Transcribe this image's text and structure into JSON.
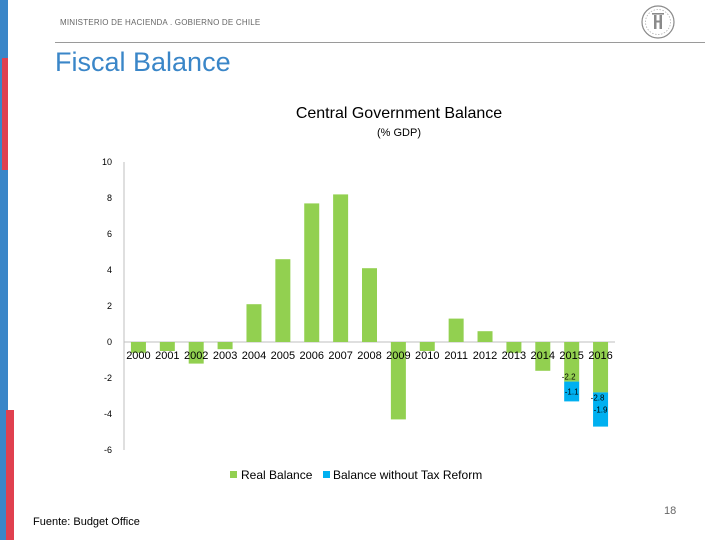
{
  "header": {
    "ministry": "MINISTERIO DE HACIENDA . GOBIERNO DE CHILE",
    "logo_icon": "government-seal-icon"
  },
  "slide": {
    "title": "Fiscal Balance",
    "page_number": "18",
    "source": "Fuente: Budget Office"
  },
  "colors": {
    "accent_blue": "#3a86c8",
    "accent_red": "#e0404f",
    "real_balance": "#92d050",
    "without_reform": "#00b0f0"
  },
  "chart_data": {
    "type": "bar",
    "title": "Central Government Balance",
    "subtitle": "(% GDP)",
    "categories": [
      "2000",
      "2001",
      "2002",
      "2003",
      "2004",
      "2005",
      "2006",
      "2007",
      "2008",
      "2009",
      "2010",
      "2011",
      "2012",
      "2013",
      "2014",
      "2015",
      "2016"
    ],
    "series": [
      {
        "name": "Real Balance",
        "values": [
          -0.6,
          -0.5,
          -1.2,
          -0.4,
          2.1,
          4.6,
          7.7,
          8.2,
          4.1,
          -4.3,
          -0.5,
          1.3,
          0.6,
          -0.6,
          -1.6,
          -2.2,
          -2.8
        ]
      },
      {
        "name": "Balance without Tax Reform",
        "values": [
          null,
          null,
          null,
          null,
          null,
          null,
          null,
          null,
          null,
          null,
          null,
          null,
          null,
          null,
          null,
          -1.1,
          -1.9
        ],
        "stacked_below_real": true
      }
    ],
    "data_labels": [
      {
        "category": "2015",
        "series": "Real Balance",
        "text": "-2.2"
      },
      {
        "category": "2016",
        "series": "Real Balance",
        "text": "-2.8"
      },
      {
        "category": "2015",
        "series": "Balance without Tax Reform",
        "text": "-1.1"
      },
      {
        "category": "2016",
        "series": "Balance without Tax Reform",
        "text": "-1.9"
      }
    ],
    "y_ticks": [
      10,
      8,
      6,
      4,
      2,
      0,
      -2,
      -4,
      -6
    ],
    "ylim": [
      -6,
      10
    ],
    "xlabel": "",
    "ylabel": "",
    "grid": false,
    "legend_position": "bottom"
  }
}
